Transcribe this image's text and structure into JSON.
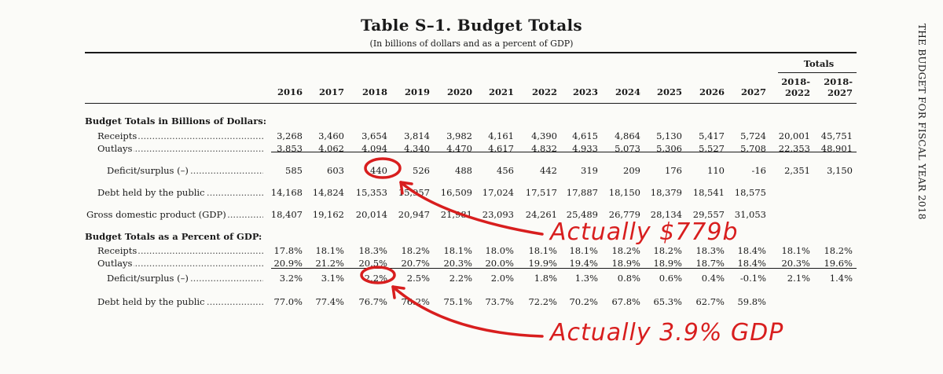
{
  "title": "Table S–1.   Budget Totals",
  "subtitle": "(In billions of dollars and as a percent of GDP)",
  "side_text": "THE BUDGET FOR FISCAL YEAR 2018",
  "totals_header": "Totals",
  "years": [
    "2016",
    "2017",
    "2018",
    "2019",
    "2020",
    "2021",
    "2022",
    "2023",
    "2024",
    "2025",
    "2026",
    "2027"
  ],
  "total_headers": [
    [
      "2018-",
      "2022"
    ],
    [
      "2018-",
      "2027"
    ]
  ],
  "section1": "Budget Totals in Billions of Dollars:",
  "section2": "Budget Totals as a Percent of GDP:",
  "rows": {
    "receipts": {
      "label": "Receipts",
      "values": [
        "3,268",
        "3,460",
        "3,654",
        "3,814",
        "3,982",
        "4,161",
        "4,390",
        "4,615",
        "4,864",
        "5,130",
        "5,417",
        "5,724",
        "20,001",
        "45,751"
      ]
    },
    "outlays": {
      "label": "Outlays",
      "values": [
        "3,853",
        "4,062",
        "4,094",
        "4,340",
        "4,470",
        "4,617",
        "4,832",
        "4,933",
        "5,073",
        "5,306",
        "5,527",
        "5,708",
        "22,353",
        "48,901"
      ]
    },
    "deficit": {
      "label": "Deficit/surplus (–)",
      "values": [
        "585",
        "603",
        "440",
        "526",
        "488",
        "456",
        "442",
        "319",
        "209",
        "176",
        "110",
        "-16",
        "2,351",
        "3,150"
      ]
    },
    "debt": {
      "label": "Debt held by the public",
      "values": [
        "14,168",
        "14,824",
        "15,353",
        "15,957",
        "16,509",
        "17,024",
        "17,517",
        "17,887",
        "18,150",
        "18,379",
        "18,541",
        "18,575",
        "",
        ""
      ]
    },
    "gdp": {
      "label": "Gross domestic product (GDP)",
      "values": [
        "18,407",
        "19,162",
        "20,014",
        "20,947",
        "21,981",
        "23,093",
        "24,261",
        "25,489",
        "26,779",
        "28,134",
        "29,557",
        "31,053",
        "",
        ""
      ]
    },
    "p_receipts": {
      "label": "Receipts",
      "values": [
        "17.8%",
        "18.1%",
        "18.3%",
        "18.2%",
        "18.1%",
        "18.0%",
        "18.1%",
        "18.1%",
        "18.2%",
        "18.2%",
        "18.3%",
        "18.4%",
        "18.1%",
        "18.2%"
      ]
    },
    "p_outlays": {
      "label": "Outlays",
      "values": [
        "20.9%",
        "21.2%",
        "20.5%",
        "20.7%",
        "20.3%",
        "20.0%",
        "19.9%",
        "19.4%",
        "18.9%",
        "18.9%",
        "18.7%",
        "18.4%",
        "20.3%",
        "19.6%"
      ]
    },
    "p_deficit": {
      "label": "Deficit/surplus (–)",
      "values": [
        "3.2%",
        "3.1%",
        "2.2%",
        "2.5%",
        "2.2%",
        "2.0%",
        "1.8%",
        "1.3%",
        "0.8%",
        "0.6%",
        "0.4%",
        "-0.1%",
        "2.1%",
        "1.4%"
      ]
    },
    "p_debt": {
      "label": "Debt held by the public",
      "values": [
        "77.0%",
        "77.4%",
        "76.7%",
        "76.2%",
        "75.1%",
        "73.7%",
        "72.2%",
        "70.2%",
        "67.8%",
        "65.3%",
        "62.7%",
        "59.8%",
        "",
        ""
      ]
    }
  },
  "annotations": {
    "note1": "Actually $779b",
    "note2": "Actually 3.9% GDP",
    "ink_color": "#d81e1e"
  }
}
